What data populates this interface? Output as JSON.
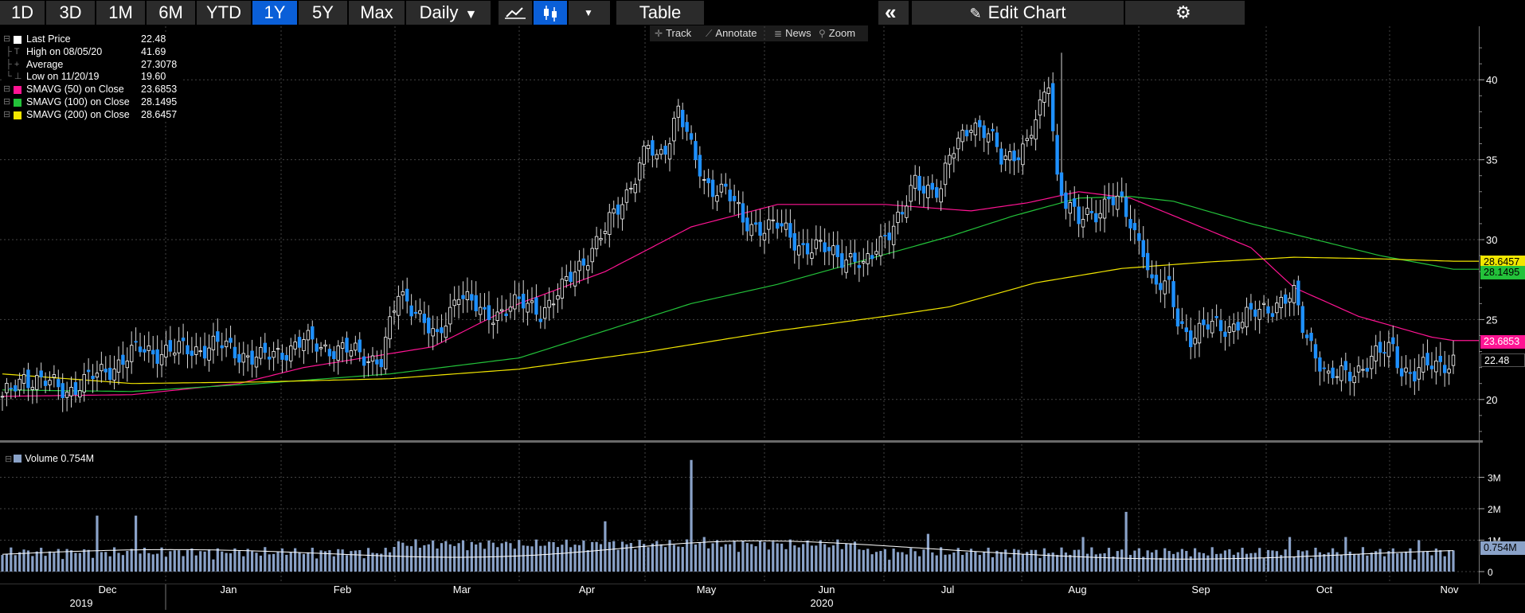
{
  "toolbar": {
    "ranges": [
      "1D",
      "3D",
      "1M",
      "6M",
      "YTD",
      "1Y",
      "5Y",
      "Max"
    ],
    "active_range": "1Y",
    "frequency": "Daily",
    "chart_style_icons": [
      "line-chart-icon",
      "candlestick-icon"
    ],
    "active_style_icon": "candlestick-icon",
    "table_label": "Table",
    "edit_chart_label": "Edit Chart"
  },
  "subtoolbar": {
    "track": "Track",
    "annotate": "Annotate",
    "news": "News",
    "zoom": "Zoom"
  },
  "legend": [
    {
      "label": "Last Price",
      "value": "22.48",
      "color": "#ffffff",
      "marker": "box"
    },
    {
      "label": "High on 08/05/20",
      "value": "41.69",
      "color": "#bbbbbb",
      "marker": "high"
    },
    {
      "label": "Average",
      "value": "27.3078",
      "color": "#bbbbbb",
      "marker": "avg"
    },
    {
      "label": "Low on 11/20/19",
      "value": "19.60",
      "color": "#bbbbbb",
      "marker": "low"
    },
    {
      "label": "SMAVG (50)  on Close",
      "value": "23.6853",
      "color": "#ff1493",
      "marker": "box"
    },
    {
      "label": "SMAVG (100)  on Close",
      "value": "28.1495",
      "color": "#23c23a",
      "marker": "box"
    },
    {
      "label": "SMAVG (200)  on Close",
      "value": "28.6457",
      "color": "#f2e600",
      "marker": "box"
    }
  ],
  "volume_legend": {
    "label": "Volume 0.754M",
    "color": "#8aa2c8"
  },
  "badges": {
    "sma200": {
      "value": "28.6457",
      "bg": "#f2e600",
      "fg": "#000000"
    },
    "sma100": {
      "value": "28.1495",
      "bg": "#23c23a",
      "fg": "#000000"
    },
    "sma50": {
      "value": "23.6853",
      "bg": "#ff1493",
      "fg": "#ffffff"
    },
    "last": {
      "value": "22.48",
      "bg": "#000000",
      "fg": "#ffffff"
    },
    "volume": {
      "value": "0.754M",
      "bg": "#8aa2c8",
      "fg": "#000000"
    }
  },
  "chart_data": {
    "type": "candlestick",
    "price_axis": {
      "ticks": [
        20,
        25,
        30,
        35,
        40
      ],
      "ylim": [
        17.5,
        43
      ]
    },
    "volume_axis": {
      "ticks": [
        "0",
        "1M",
        "2M",
        "3M"
      ],
      "tick_values": [
        0,
        1,
        2,
        3
      ],
      "ylim": [
        0,
        4
      ],
      "unit": "M"
    },
    "x_months": [
      "Dec",
      "Jan",
      "Feb",
      "Mar",
      "Apr",
      "May",
      "Jun",
      "Jul",
      "Aug",
      "Sep",
      "Oct",
      "Nov"
    ],
    "x_years": [
      "2019",
      "2020"
    ],
    "series": [
      {
        "name": "SMAVG (50)  on Close",
        "color": "#ff1493",
        "anchors": [
          [
            0,
            20.2
          ],
          [
            30,
            20.3
          ],
          [
            55,
            21.0
          ],
          [
            70,
            22.0
          ],
          [
            100,
            23.3
          ],
          [
            120,
            26.0
          ],
          [
            140,
            28.0
          ],
          [
            160,
            30.8
          ],
          [
            180,
            32.2
          ],
          [
            205,
            32.2
          ],
          [
            225,
            31.8
          ],
          [
            238,
            32.3
          ],
          [
            250,
            33.0
          ],
          [
            262,
            32.6
          ],
          [
            272,
            31.5
          ],
          [
            290,
            29.5
          ],
          [
            300,
            27.0
          ],
          [
            315,
            25.2
          ],
          [
            332,
            23.9
          ],
          [
            337,
            23.69
          ]
        ]
      },
      {
        "name": "SMAVG (100)  on Close",
        "color": "#23c23a",
        "anchors": [
          [
            0,
            20.6
          ],
          [
            30,
            20.5
          ],
          [
            60,
            21.0
          ],
          [
            90,
            21.6
          ],
          [
            120,
            22.6
          ],
          [
            140,
            24.3
          ],
          [
            160,
            26.0
          ],
          [
            180,
            27.2
          ],
          [
            200,
            28.7
          ],
          [
            220,
            30.2
          ],
          [
            235,
            31.5
          ],
          [
            250,
            32.6
          ],
          [
            262,
            32.7
          ],
          [
            272,
            32.4
          ],
          [
            290,
            31.0
          ],
          [
            305,
            30.0
          ],
          [
            320,
            29.0
          ],
          [
            330,
            28.5
          ],
          [
            337,
            28.15
          ]
        ]
      },
      {
        "name": "SMAVG (200)  on Close",
        "color": "#f2e600",
        "anchors": [
          [
            0,
            21.6
          ],
          [
            30,
            21.0
          ],
          [
            60,
            21.1
          ],
          [
            90,
            21.3
          ],
          [
            120,
            21.9
          ],
          [
            150,
            23.0
          ],
          [
            180,
            24.3
          ],
          [
            205,
            25.2
          ],
          [
            220,
            25.8
          ],
          [
            240,
            27.3
          ],
          [
            260,
            28.2
          ],
          [
            280,
            28.6
          ],
          [
            300,
            28.9
          ],
          [
            320,
            28.8
          ],
          [
            337,
            28.65
          ]
        ]
      }
    ],
    "close_anchors": [
      [
        0,
        19.9
      ],
      [
        5,
        21.5
      ],
      [
        10,
        21.0
      ],
      [
        15,
        20.6
      ],
      [
        20,
        21.2
      ],
      [
        25,
        22.0
      ],
      [
        32,
        23.1
      ],
      [
        40,
        23.0
      ],
      [
        50,
        23.4
      ],
      [
        60,
        22.5
      ],
      [
        70,
        23.6
      ],
      [
        80,
        23.0
      ],
      [
        88,
        22.5
      ],
      [
        92,
        26.5
      ],
      [
        96,
        25.8
      ],
      [
        101,
        23.5
      ],
      [
        106,
        27.0
      ],
      [
        112,
        25.0
      ],
      [
        118,
        26.0
      ],
      [
        125,
        25.6
      ],
      [
        130,
        26.8
      ],
      [
        135,
        28.8
      ],
      [
        140,
        30.5
      ],
      [
        145,
        33.0
      ],
      [
        150,
        35.8
      ],
      [
        152,
        34.8
      ],
      [
        155,
        36.5
      ],
      [
        157,
        38.5
      ],
      [
        160,
        35.5
      ],
      [
        163,
        33.5
      ],
      [
        168,
        33.2
      ],
      [
        172,
        31.0
      ],
      [
        180,
        30.8
      ],
      [
        186,
        29.6
      ],
      [
        193,
        29.2
      ],
      [
        198,
        28.8
      ],
      [
        200,
        28.0
      ],
      [
        205,
        30.5
      ],
      [
        209,
        31.5
      ],
      [
        212,
        33.5
      ],
      [
        218,
        33.2
      ],
      [
        220,
        35.0
      ],
      [
        225,
        37.5
      ],
      [
        229,
        36.5
      ],
      [
        232,
        35.0
      ],
      [
        238,
        36.0
      ],
      [
        241,
        38.0
      ],
      [
        243,
        40.0
      ],
      [
        245,
        34.0
      ],
      [
        247,
        32.5
      ],
      [
        250,
        31.0
      ],
      [
        255,
        32.0
      ],
      [
        257,
        32.8
      ],
      [
        260,
        32.0
      ],
      [
        263,
        30.3
      ],
      [
        265,
        29.7
      ],
      [
        267,
        27.3
      ],
      [
        271,
        26.8
      ],
      [
        273,
        25.0
      ],
      [
        276,
        24.0
      ],
      [
        280,
        24.5
      ],
      [
        285,
        24.6
      ],
      [
        290,
        25.2
      ],
      [
        296,
        26.1
      ],
      [
        300,
        26.4
      ],
      [
        302,
        24.5
      ],
      [
        306,
        22.5
      ],
      [
        308,
        21.3
      ],
      [
        312,
        21.5
      ],
      [
        318,
        22.5
      ],
      [
        323,
        23.3
      ],
      [
        325,
        22.0
      ],
      [
        328,
        21.5
      ],
      [
        332,
        22.2
      ],
      [
        337,
        22.48
      ]
    ],
    "hilo_overrides": {
      "1": 19.6,
      "246": 41.69
    }
  }
}
